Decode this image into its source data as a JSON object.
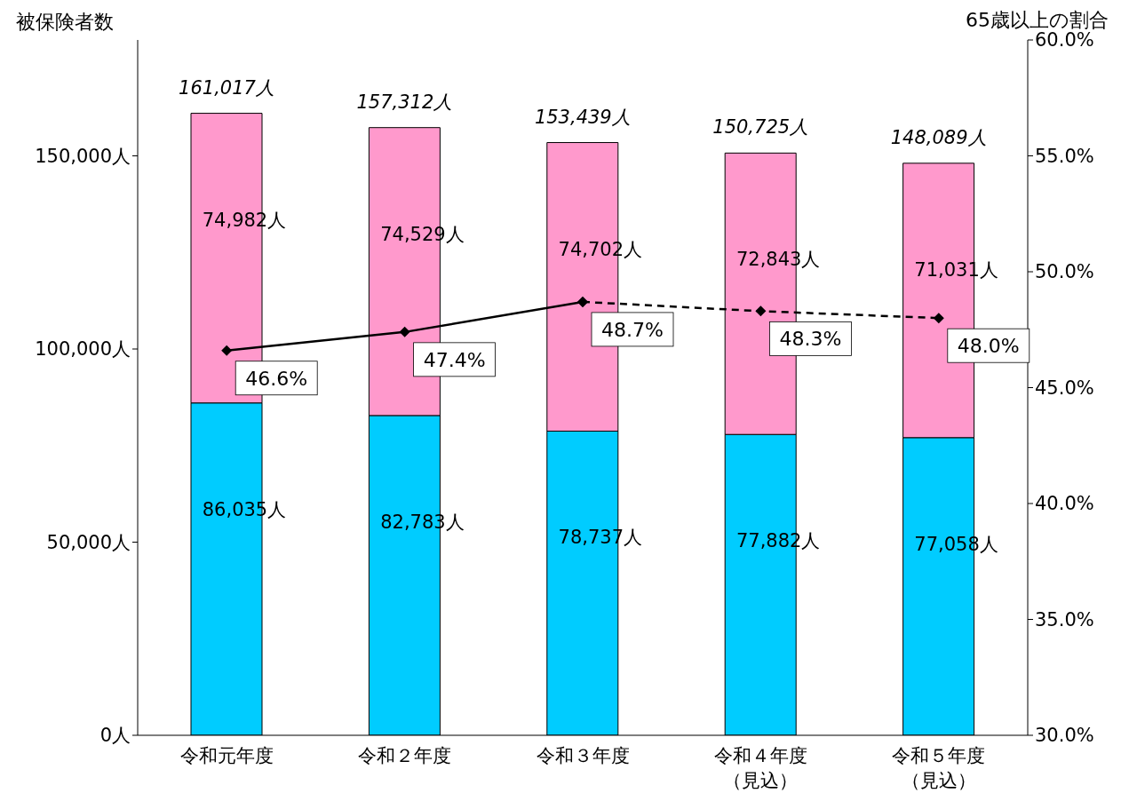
{
  "chart_data": {
    "type": "bar",
    "stacked": true,
    "ylabel": "被保険者数",
    "y2label": "65歳以上の割合",
    "categories": [
      "令和元年度",
      "令和２年度",
      "令和３年度",
      "令和４年度（見込）",
      "令和５年度（見込）"
    ],
    "series": [
      {
        "color": "#00ccff",
        "values": [
          86035,
          82783,
          78737,
          77882,
          77058
        ],
        "value_labels": [
          "86,035人",
          "82,783人",
          "78,737人",
          "77,882人",
          "77,058人"
        ]
      },
      {
        "color": "#ff99cc",
        "values": [
          74982,
          74529,
          74702,
          72843,
          71031
        ],
        "value_labels": [
          "74,982人",
          "74,529人",
          "74,702人",
          "72,843人",
          "71,031人"
        ]
      },
      {
        "type": "line",
        "axis": "y2",
        "color": "#000000",
        "line_style": "solid",
        "marker": "diamond",
        "values": [
          46.6,
          47.4,
          48.7,
          null,
          null
        ],
        "value_labels": [
          "46.6%",
          "47.4%",
          "48.7%",
          null,
          null
        ]
      },
      {
        "type": "line",
        "axis": "y2",
        "color": "#000000",
        "line_style": "dashed",
        "marker": "diamond",
        "values": [
          null,
          null,
          48.7,
          48.3,
          48.0
        ],
        "value_labels": [
          null,
          null,
          null,
          "48.3%",
          "48.0%"
        ]
      }
    ],
    "totals": [
      "161,017人",
      "157,312人",
      "153,439人",
      "150,725人",
      "148,089人"
    ],
    "ylim": [
      0,
      180000
    ],
    "yticks": [
      {
        "value": 0,
        "label": "0人"
      },
      {
        "value": 50000,
        "label": "50,000人"
      },
      {
        "value": 100000,
        "label": "100,000人"
      },
      {
        "value": 150000,
        "label": "150,000人"
      }
    ],
    "y2lim": [
      30,
      60
    ],
    "y2ticks": [
      {
        "value": 30,
        "label": "30.0%"
      },
      {
        "value": 35,
        "label": "35.0%"
      },
      {
        "value": 40,
        "label": "40.0%"
      },
      {
        "value": 45,
        "label": "45.0%"
      },
      {
        "value": 50,
        "label": "50.0%"
      },
      {
        "value": 55,
        "label": "55.0%"
      },
      {
        "value": 60,
        "label": "60.0%"
      }
    ]
  }
}
